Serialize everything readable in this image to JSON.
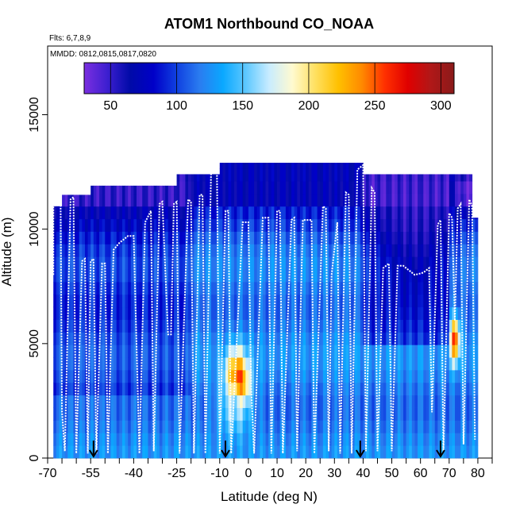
{
  "chart_data": {
    "type": "heatmap",
    "title": "ATOM1 Northbound CO_NOAA",
    "flights_note": "Flts: 6,7,8,9",
    "dates_note": "MMDD: 0812,0815,0817,0820",
    "xlabel": "Latitude (deg N)",
    "ylabel": "Altitude (m)",
    "xlim": [
      -70,
      85
    ],
    "ylim": [
      0,
      18000
    ],
    "x_tick_labels": [
      "-70",
      "-55",
      "-40",
      "-25",
      "-10",
      "0",
      "10",
      "20",
      "30",
      "40",
      "50",
      "60",
      "70",
      "80"
    ],
    "x_tick_values": [
      -70,
      -55,
      -40,
      -25,
      -10,
      0,
      10,
      20,
      30,
      40,
      50,
      60,
      70,
      80
    ],
    "x_minor_ticks": [
      -65,
      -60,
      -50,
      -45,
      -35,
      -30,
      -20,
      -15,
      -5,
      5,
      15,
      25,
      35,
      45,
      55,
      65,
      75,
      85
    ],
    "y_tick_labels": [
      "0",
      "5000",
      "10000",
      "15000"
    ],
    "y_tick_values": [
      0,
      5000,
      10000,
      15000
    ],
    "colorbar": {
      "tick_labels": [
        "50",
        "100",
        "150",
        "200",
        "250",
        "300"
      ],
      "tick_values": [
        50,
        100,
        150,
        200,
        250,
        300
      ],
      "range": [
        30,
        310
      ],
      "stops": [
        "#7b2fe0",
        "#3d1fd0",
        "#000aa8",
        "#0000c8",
        "#1040e0",
        "#2a7cf0",
        "#0aa8ff",
        "#5ec8ff",
        "#c8ecff",
        "#fffad0",
        "#ffe060",
        "#ffc000",
        "#ff8a00",
        "#ff3000",
        "#e00000",
        "#b01818",
        "#8a1a1a"
      ]
    },
    "sounding_arrows": [
      -54,
      -8,
      39,
      67
    ],
    "curtain_columns": [
      {
        "x0": -68,
        "x1": -65,
        "top": 11000,
        "base": 90
      },
      {
        "x0": -65,
        "x1": -55,
        "top": 11500,
        "base": 85
      },
      {
        "x0": -55,
        "x1": -40,
        "top": 11900,
        "base": 75
      },
      {
        "x0": -40,
        "x1": -25,
        "top": 11900,
        "base": 70
      },
      {
        "x0": -25,
        "x1": -10,
        "top": 12400,
        "base": 90
      },
      {
        "x0": -10,
        "x1": 0,
        "top": 12900,
        "base": 110
      },
      {
        "x0": 0,
        "x1": 10,
        "top": 12900,
        "base": 110
      },
      {
        "x0": 10,
        "x1": 20,
        "top": 12900,
        "base": 95
      },
      {
        "x0": 20,
        "x1": 30,
        "top": 12900,
        "base": 90
      },
      {
        "x0": 30,
        "x1": 40,
        "top": 12900,
        "base": 85
      },
      {
        "x0": 40,
        "x1": 50,
        "top": 12400,
        "base": 85
      },
      {
        "x0": 50,
        "x1": 60,
        "top": 12400,
        "base": 85
      },
      {
        "x0": 60,
        "x1": 70,
        "top": 12400,
        "base": 80
      },
      {
        "x0": 70,
        "x1": 78,
        "top": 12400,
        "base": 90
      },
      {
        "x0": 78,
        "x1": 80,
        "top": 10500,
        "base": 95
      }
    ],
    "features": [
      {
        "x": -4,
        "y": 3500,
        "dx": 5,
        "dy": 1500,
        "value": 250
      },
      {
        "x": -3,
        "y": 3000,
        "dx": 3,
        "dy": 800,
        "value": 300
      },
      {
        "x": -5,
        "y": 2200,
        "dx": 7,
        "dy": 1400,
        "value": 170
      },
      {
        "x": 72,
        "y": 5200,
        "dx": 2,
        "dy": 1200,
        "value": 260
      },
      {
        "x": 58,
        "y": 9500,
        "dx": 16,
        "dy": 2500,
        "value": 55
      },
      {
        "x": 76,
        "y": 11800,
        "dx": 5,
        "dy": 1200,
        "value": 40
      }
    ],
    "flight_track": [
      [
        -68,
        8000
      ],
      [
        -68,
        11000
      ],
      [
        -66,
        11400
      ],
      [
        -65.5,
        11400
      ],
      [
        -65,
        2000
      ],
      [
        -64,
        300
      ],
      [
        -62,
        11300
      ],
      [
        -61,
        11400
      ],
      [
        -60,
        200
      ],
      [
        -58,
        8600
      ],
      [
        -57,
        8700
      ],
      [
        -56,
        200
      ],
      [
        -55,
        8600
      ],
      [
        -54,
        8700
      ],
      [
        -53,
        200
      ],
      [
        -51,
        8500
      ],
      [
        -50,
        8500
      ],
      [
        -49,
        200
      ],
      [
        -47,
        9100
      ],
      [
        -45,
        9400
      ],
      [
        -42,
        9700
      ],
      [
        -40,
        9700
      ],
      [
        -38,
        200
      ],
      [
        -36,
        10300
      ],
      [
        -34,
        10800
      ],
      [
        -33,
        300
      ],
      [
        -31,
        11100
      ],
      [
        -30,
        11200
      ],
      [
        -28,
        5400
      ],
      [
        -27,
        5400
      ],
      [
        -26,
        11100
      ],
      [
        -25,
        11200
      ],
      [
        -24,
        200
      ],
      [
        -21,
        11300
      ],
      [
        -20,
        11200
      ],
      [
        -19,
        200
      ],
      [
        -17,
        11500
      ],
      [
        -16,
        11500
      ],
      [
        -15,
        200
      ],
      [
        -13,
        12500
      ],
      [
        -11,
        12800
      ],
      [
        -10,
        200
      ],
      [
        -8,
        10800
      ],
      [
        -7,
        10800
      ],
      [
        -6,
        200
      ],
      [
        -2,
        10300
      ],
      [
        0,
        10300
      ],
      [
        1,
        3000
      ],
      [
        2,
        200
      ],
      [
        5,
        10500
      ],
      [
        7,
        10500
      ],
      [
        8,
        200
      ],
      [
        10,
        10800
      ],
      [
        11,
        10800
      ],
      [
        12,
        200
      ],
      [
        15,
        10400
      ],
      [
        16,
        10500
      ],
      [
        17,
        300
      ],
      [
        19,
        10400
      ],
      [
        22,
        10400
      ],
      [
        23,
        200
      ],
      [
        26,
        11000
      ],
      [
        27,
        10900
      ],
      [
        28,
        300
      ],
      [
        29,
        8000
      ],
      [
        31,
        10300
      ],
      [
        32,
        200
      ],
      [
        34,
        11600
      ],
      [
        35,
        11500
      ],
      [
        36,
        200
      ],
      [
        38,
        12600
      ],
      [
        40,
        12800
      ],
      [
        41,
        300
      ],
      [
        43,
        11800
      ],
      [
        44,
        11600
      ],
      [
        45,
        300
      ],
      [
        47,
        8300
      ],
      [
        49,
        8500
      ],
      [
        50,
        300
      ],
      [
        52,
        8400
      ],
      [
        54,
        8400
      ],
      [
        58,
        8000
      ],
      [
        61,
        8100
      ],
      [
        63,
        8300
      ],
      [
        64,
        2000
      ],
      [
        66,
        10200
      ],
      [
        67,
        10400
      ],
      [
        68,
        300
      ],
      [
        70,
        10700
      ],
      [
        71,
        10500
      ],
      [
        72,
        6000
      ],
      [
        73,
        10900
      ],
      [
        74,
        11100
      ],
      [
        75,
        600
      ],
      [
        77,
        11300
      ],
      [
        78,
        11000
      ],
      [
        79,
        800
      ]
    ]
  }
}
